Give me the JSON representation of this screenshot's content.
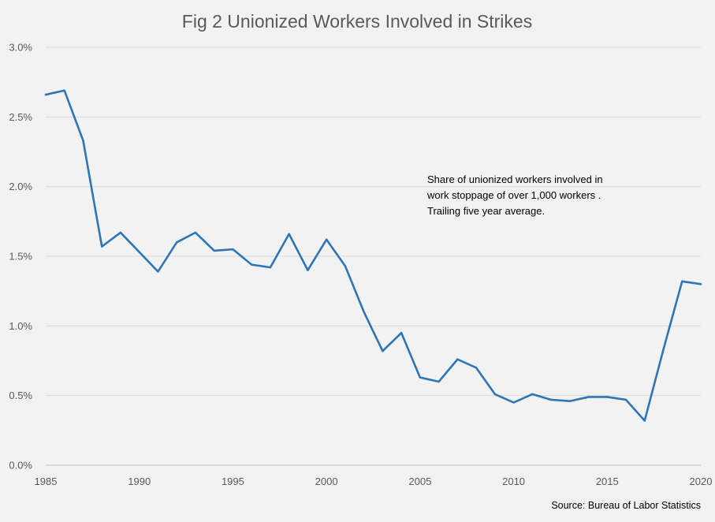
{
  "chart_data": {
    "type": "line",
    "title": "Fig 2 Unionized Workers Involved in Strikes",
    "xlabel": "",
    "ylabel": "",
    "xlim": [
      1985,
      2020
    ],
    "ylim": [
      0,
      0.03
    ],
    "x_ticks": [
      {
        "value": 1985,
        "label": "1985"
      },
      {
        "value": 1990,
        "label": "1990"
      },
      {
        "value": 1995,
        "label": "1995"
      },
      {
        "value": 2000,
        "label": "2000"
      },
      {
        "value": 2005,
        "label": "2005"
      },
      {
        "value": 2010,
        "label": "2010"
      },
      {
        "value": 2015,
        "label": "2015"
      },
      {
        "value": 2020,
        "label": "2020"
      }
    ],
    "y_ticks": [
      {
        "value": 0.0,
        "label": "0.0%"
      },
      {
        "value": 0.005,
        "label": "0.5%"
      },
      {
        "value": 0.01,
        "label": "1.0%"
      },
      {
        "value": 0.015,
        "label": "1.5%"
      },
      {
        "value": 0.02,
        "label": "2.0%"
      },
      {
        "value": 0.025,
        "label": "2.5%"
      },
      {
        "value": 0.03,
        "label": "3.0%"
      }
    ],
    "grid": {
      "horizontal": true,
      "vertical": false
    },
    "legend": null,
    "series": [
      {
        "color": "#2e75b6",
        "x": [
          1985,
          1986,
          1987,
          1988,
          1989,
          1990,
          1991,
          1992,
          1993,
          1994,
          1995,
          1996,
          1997,
          1998,
          1999,
          2000,
          2001,
          2002,
          2003,
          2004,
          2005,
          2006,
          2007,
          2008,
          2009,
          2010,
          2011,
          2012,
          2013,
          2014,
          2015,
          2016,
          2017,
          2018,
          2019,
          2020
        ],
        "values": [
          0.0266,
          0.0269,
          0.0233,
          0.0157,
          0.0167,
          0.0153,
          0.0139,
          0.016,
          0.0167,
          0.0154,
          0.0155,
          0.0144,
          0.0142,
          0.0166,
          0.014,
          0.0162,
          0.0143,
          0.011,
          0.0082,
          0.0095,
          0.0063,
          0.006,
          0.0076,
          0.007,
          0.0051,
          0.0045,
          0.0051,
          0.0047,
          0.0046,
          0.0049,
          0.0049,
          0.0047,
          0.0032,
          0.0083,
          0.0132,
          0.013
        ]
      }
    ],
    "annotations": [
      {
        "lines": [
          "Share of unionized workers involved in",
          "work stoppage of over 1,000 workers .",
          "Trailing five year average."
        ]
      }
    ],
    "source": "Source: Bureau of Labor Statistics"
  }
}
